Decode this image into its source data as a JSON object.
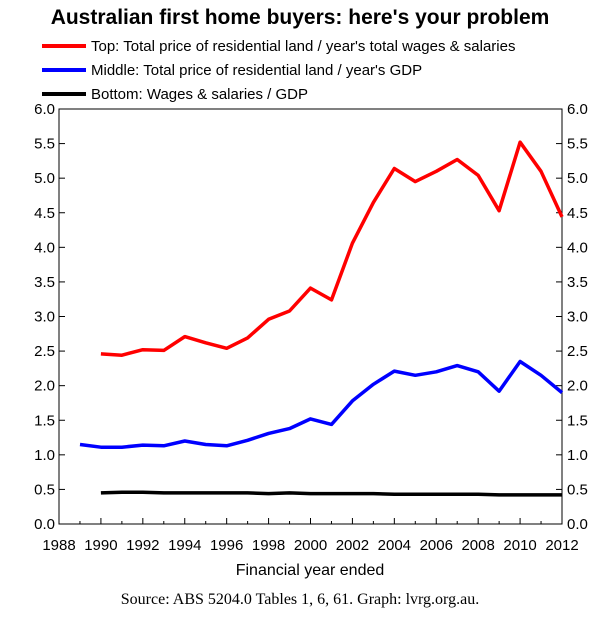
{
  "chart_data": {
    "type": "line",
    "title": "Australian first home buyers: here's your problem",
    "xlabel": "Financial year ended",
    "ylabel": "",
    "xlim": [
      1988,
      2012
    ],
    "ylim": [
      0,
      6
    ],
    "x_ticks": [
      "1988",
      "1990",
      "1992",
      "1994",
      "1996",
      "1998",
      "2000",
      "2002",
      "2004",
      "2006",
      "2008",
      "2010",
      "2012"
    ],
    "y_ticks": [
      "0.0",
      "0.5",
      "1.0",
      "1.5",
      "2.0",
      "2.5",
      "3.0",
      "3.5",
      "4.0",
      "4.5",
      "5.0",
      "5.5",
      "6.0"
    ],
    "y_axis_both_sides": true,
    "grid": false,
    "legend_position": "top",
    "series": [
      {
        "name": "Top: Total price of residential land / year's total wages & salaries",
        "color": "#ff0000",
        "x": [
          1990,
          1991,
          1992,
          1993,
          1994,
          1995,
          1996,
          1997,
          1998,
          1999,
          2000,
          2001,
          2002,
          2003,
          2004,
          2005,
          2006,
          2007,
          2008,
          2009,
          2010,
          2011,
          2012
        ],
        "values": [
          2.46,
          2.44,
          2.52,
          2.51,
          2.71,
          2.62,
          2.54,
          2.69,
          2.96,
          3.08,
          3.41,
          3.24,
          4.06,
          4.65,
          5.14,
          4.95,
          5.1,
          5.27,
          5.04,
          4.53,
          5.52,
          5.1,
          4.44
        ]
      },
      {
        "name": "Middle: Total price of residential land / year's GDP",
        "color": "#0000ff",
        "x": [
          1989,
          1990,
          1991,
          1992,
          1993,
          1994,
          1995,
          1996,
          1997,
          1998,
          1999,
          2000,
          2001,
          2002,
          2003,
          2004,
          2005,
          2006,
          2007,
          2008,
          2009,
          2010,
          2011,
          2012
        ],
        "values": [
          1.15,
          1.11,
          1.11,
          1.14,
          1.13,
          1.2,
          1.15,
          1.13,
          1.21,
          1.31,
          1.38,
          1.52,
          1.44,
          1.78,
          2.02,
          2.21,
          2.15,
          2.2,
          2.29,
          2.2,
          1.92,
          2.35,
          2.15,
          1.9
        ]
      },
      {
        "name": "Bottom: Wages & salaries / GDP",
        "color": "#000000",
        "x": [
          1990,
          1991,
          1992,
          1993,
          1994,
          1995,
          1996,
          1997,
          1998,
          1999,
          2000,
          2001,
          2002,
          2003,
          2004,
          2005,
          2006,
          2007,
          2008,
          2009,
          2010,
          2011,
          2012
        ],
        "values": [
          0.45,
          0.46,
          0.46,
          0.45,
          0.45,
          0.45,
          0.45,
          0.45,
          0.44,
          0.45,
          0.44,
          0.44,
          0.44,
          0.44,
          0.43,
          0.43,
          0.43,
          0.43,
          0.43,
          0.42,
          0.42,
          0.42,
          0.42
        ]
      }
    ]
  },
  "source_note": "Source: ABS 5204.0 Tables 1, 6, 61.  Graph: lvrg.org.au."
}
